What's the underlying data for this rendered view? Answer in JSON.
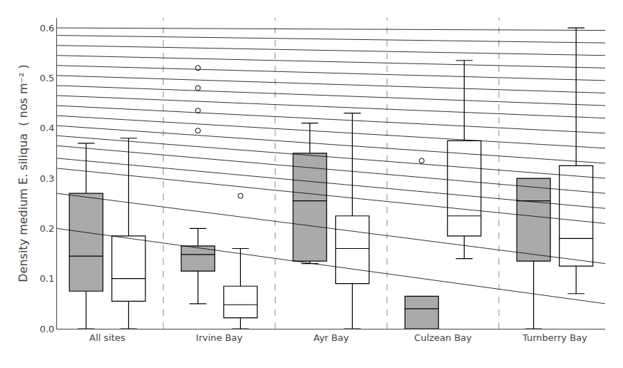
{
  "chart_data": {
    "type": "box",
    "ylabel": "Density medium E. siliqua  ( nos m⁻² )",
    "categories": [
      "All sites",
      "Irvine Bay",
      "Ayr Bay",
      "Culzean Bay",
      "Turnberry Bay"
    ],
    "ylim": [
      0.0,
      0.62
    ],
    "yticks": [
      {
        "value": 0.0,
        "label": "0.0"
      },
      0.1,
      0.2,
      0.3,
      0.4,
      0.5,
      0.6
    ],
    "grid": false,
    "series": [
      {
        "color": "#aaaaaa",
        "values": [
          {
            "median": 0.145,
            "q1": 0.075,
            "q3": 0.27,
            "lower_whisker": 0.0,
            "upper_whisker": 0.37,
            "outliers": []
          },
          {
            "median": 0.148,
            "q1": 0.115,
            "q3": 0.165,
            "lower_whisker": 0.05,
            "upper_whisker": 0.2,
            "outliers": [
              0.52,
              0.48,
              0.435,
              0.395
            ]
          },
          {
            "median": 0.255,
            "q1": 0.135,
            "q3": 0.35,
            "lower_whisker": 0.13,
            "upper_whisker": 0.41,
            "outliers": []
          },
          {
            "median": 0.04,
            "q1": 0.0,
            "q3": 0.065,
            "lower_whisker": 0.0,
            "upper_whisker": 0.065,
            "outliers": [
              0.335
            ]
          },
          {
            "median": 0.255,
            "q1": 0.135,
            "q3": 0.3,
            "lower_whisker": 0.0,
            "upper_whisker": 0.3,
            "outliers": []
          }
        ]
      },
      {
        "color": "#ffffff",
        "values": [
          {
            "median": 0.1,
            "q1": 0.055,
            "q3": 0.185,
            "lower_whisker": 0.0,
            "upper_whisker": 0.38,
            "outliers": []
          },
          {
            "median": 0.048,
            "q1": 0.022,
            "q3": 0.085,
            "lower_whisker": 0.0,
            "upper_whisker": 0.16,
            "outliers": [
              0.265
            ]
          },
          {
            "median": 0.16,
            "q1": 0.09,
            "q3": 0.225,
            "lower_whisker": 0.0,
            "upper_whisker": 0.43,
            "outliers": []
          },
          {
            "median": 0.225,
            "q1": 0.185,
            "q3": 0.375,
            "lower_whisker": 0.14,
            "upper_whisker": 0.535,
            "outliers": []
          },
          {
            "median": 0.18,
            "q1": 0.125,
            "q3": 0.325,
            "lower_whisker": 0.07,
            "upper_whisker": 0.6,
            "outliers": []
          }
        ]
      }
    ],
    "lines": {
      "y_left": [
        0.6,
        0.585,
        0.565,
        0.545,
        0.525,
        0.505,
        0.485,
        0.465,
        0.445,
        0.425,
        0.405,
        0.385,
        0.365,
        0.34,
        0.32,
        0.27,
        0.2
      ],
      "y_right": [
        0.595,
        0.57,
        0.545,
        0.52,
        0.495,
        0.47,
        0.445,
        0.42,
        0.39,
        0.36,
        0.33,
        0.3,
        0.27,
        0.24,
        0.21,
        0.13,
        0.05
      ]
    }
  }
}
